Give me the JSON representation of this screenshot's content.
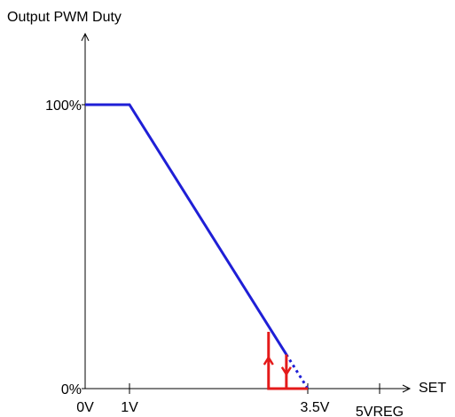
{
  "chart_data": {
    "type": "line",
    "title": "Output PWM  Duty",
    "x_label": "SET",
    "xlim": [
      0,
      5
    ],
    "xticks": [
      {
        "value": 0,
        "label": "0V"
      },
      {
        "value": 1,
        "label": "1V"
      },
      {
        "value": 3.5,
        "label": "3.5V"
      },
      {
        "value": 5,
        "label": "5VREG"
      }
    ],
    "ylim": [
      0,
      125
    ],
    "yticks": [
      {
        "value": 0,
        "label": "0%"
      },
      {
        "value": 100,
        "label": "100%"
      }
    ],
    "series": [
      {
        "color": "#1f1fd6",
        "style": "solid",
        "x": [
          0,
          1,
          3.2
        ],
        "values": [
          100,
          100,
          12
        ]
      },
      {
        "color": "#1f1fd6",
        "style": "dotted",
        "x": [
          3.2,
          3.5
        ],
        "values": [
          12,
          0
        ]
      },
      {
        "color": "#e41a1a",
        "style": "solid",
        "arrow": "up",
        "x": [
          3.5,
          2.95,
          2.95
        ],
        "values": [
          0,
          0,
          20
        ]
      },
      {
        "color": "#e41a1a",
        "style": "solid",
        "arrow": "down",
        "x": [
          3.2,
          3.2
        ],
        "values": [
          12,
          0
        ]
      }
    ]
  }
}
